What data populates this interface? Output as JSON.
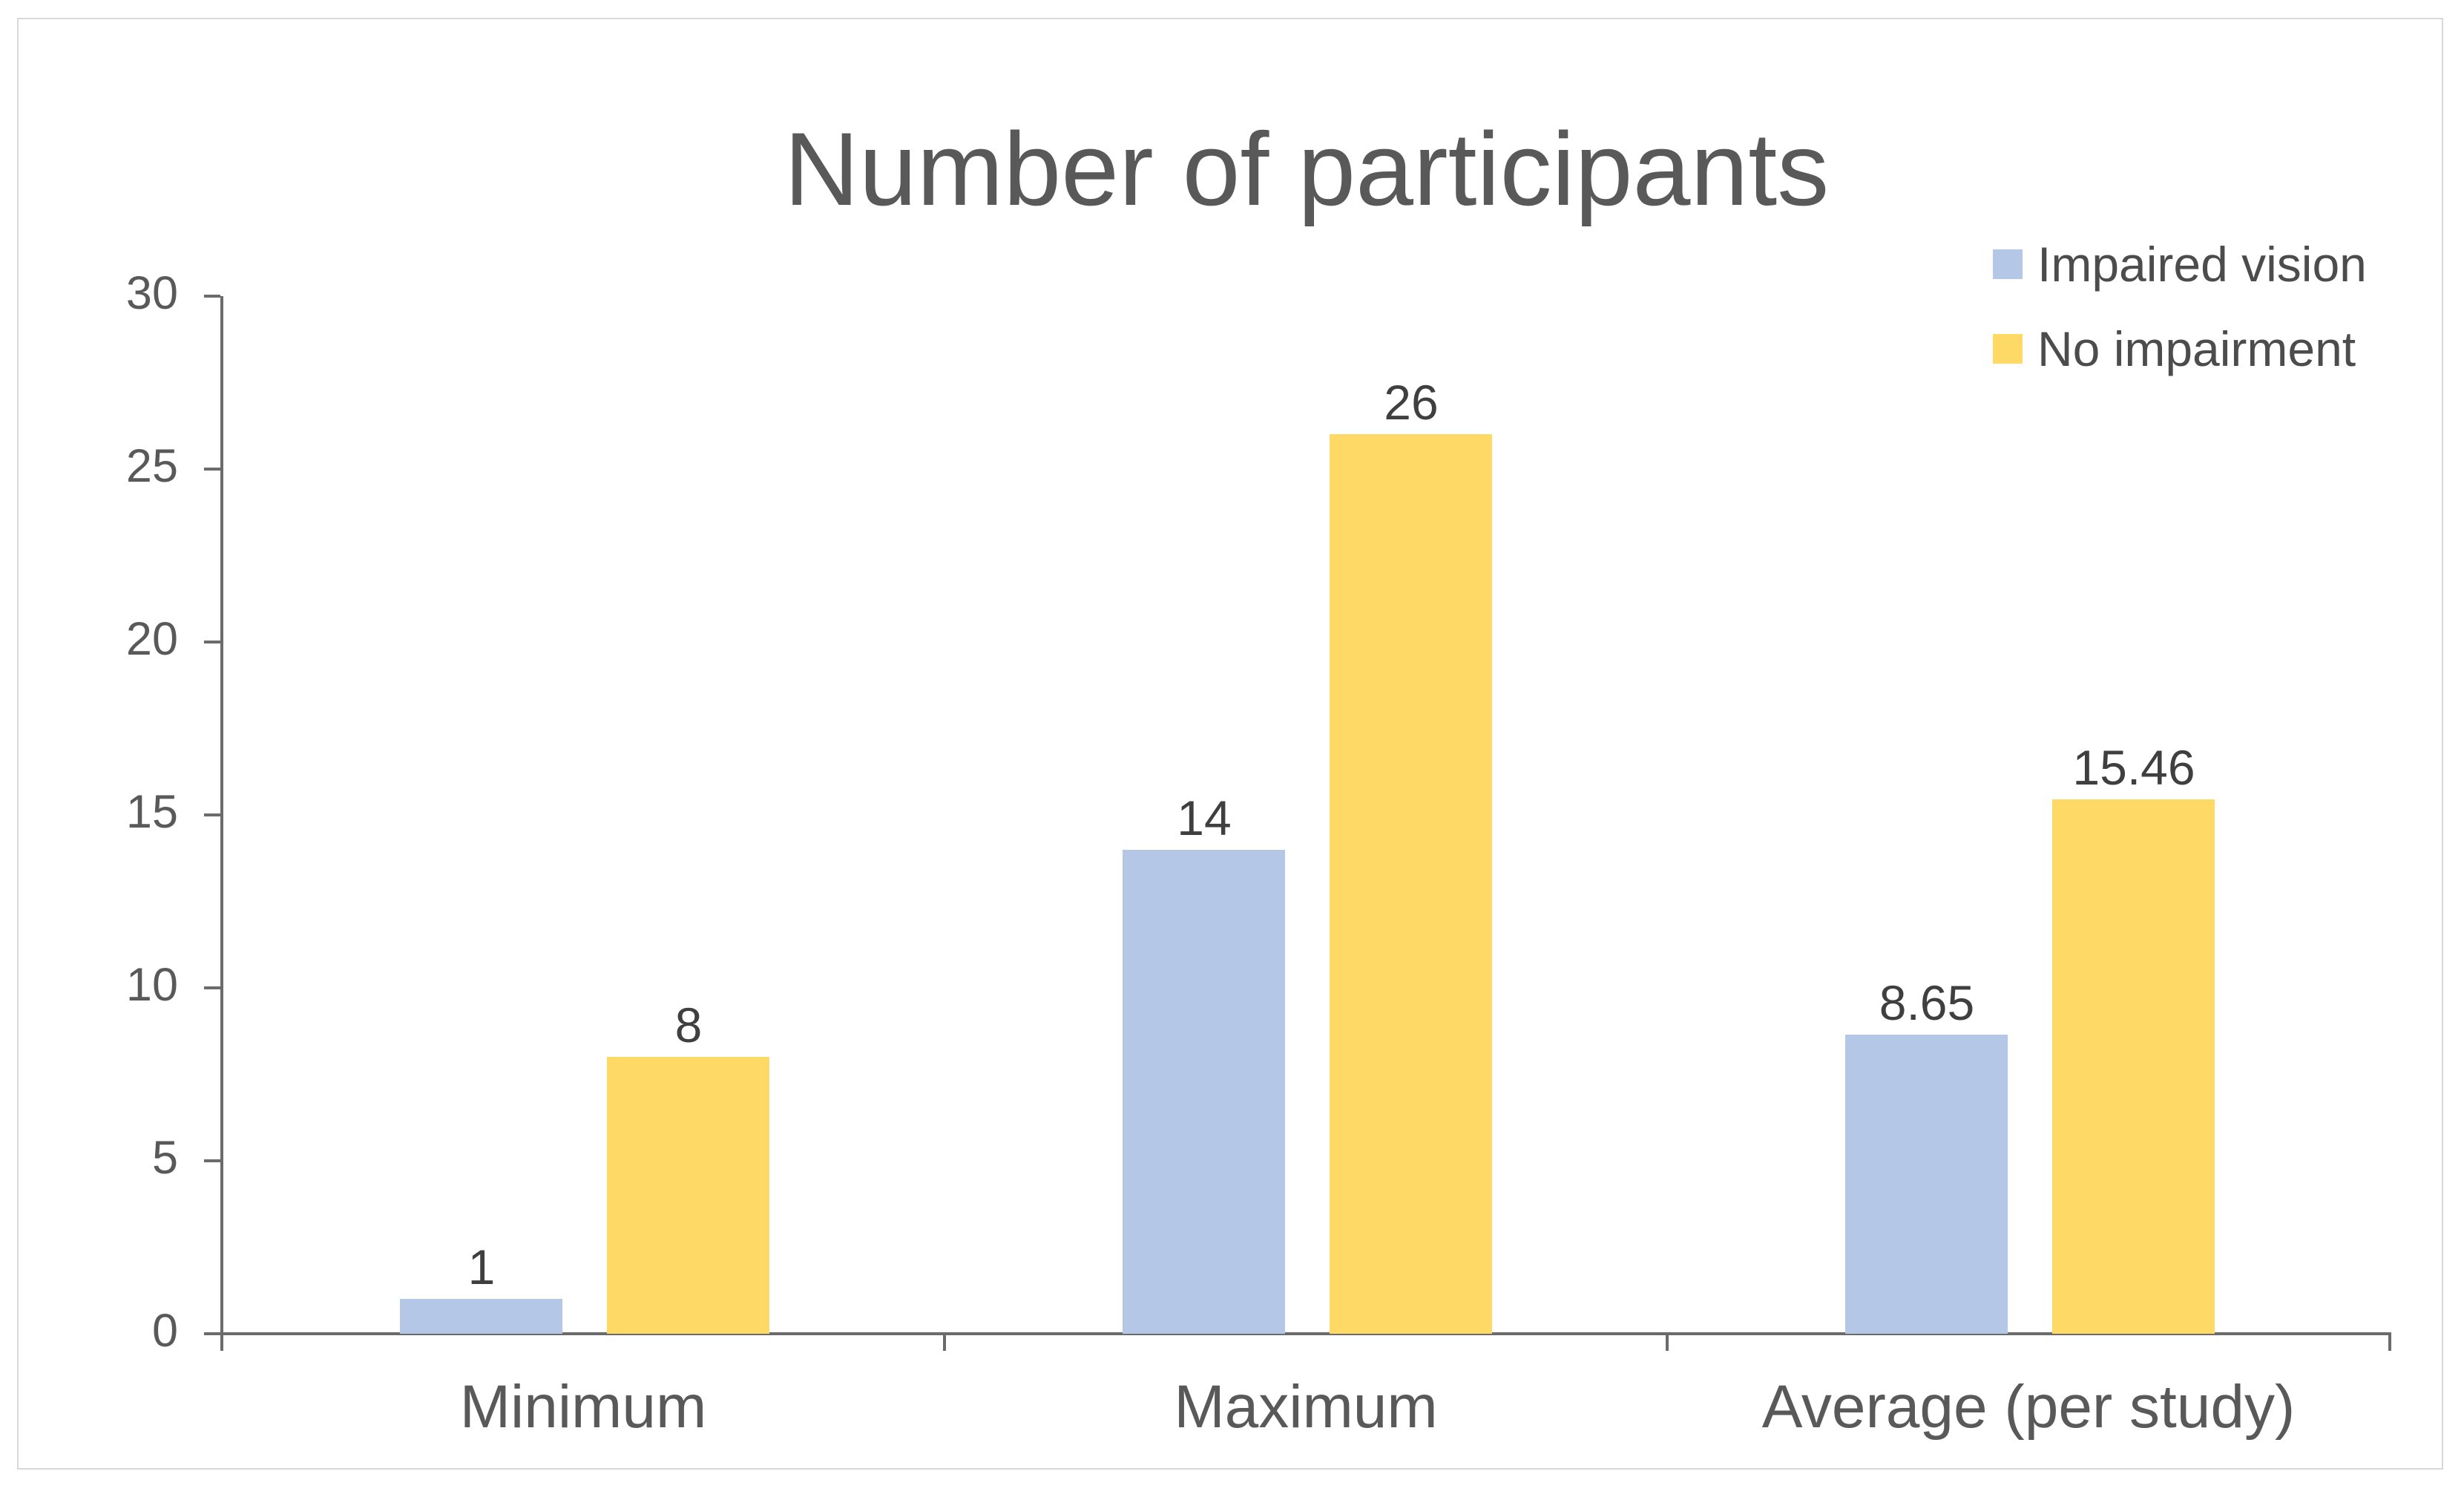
{
  "chart_data": {
    "type": "bar",
    "title": "Number of participants",
    "categories": [
      "Minimum",
      "Maximum",
      "Average (per study)"
    ],
    "series": [
      {
        "name": "Impaired vision",
        "color": "#B4C7E7",
        "values": [
          1,
          14,
          8.65
        ]
      },
      {
        "name": "No impairment",
        "color": "#FFD966",
        "values": [
          8,
          26,
          15.46
        ]
      }
    ],
    "data_labels": [
      "1",
      "8",
      "14",
      "26",
      "8.65",
      "15.46"
    ],
    "xlabel": "",
    "ylabel": "",
    "ylim": [
      0,
      30
    ],
    "yticks": [
      0,
      5,
      10,
      15,
      20,
      25,
      30
    ],
    "grid": false,
    "legend_position": "top-right",
    "bar_value_label_color": "#3F3F3F",
    "axis_color": "#6B6B6B",
    "text_color": "#595959"
  }
}
